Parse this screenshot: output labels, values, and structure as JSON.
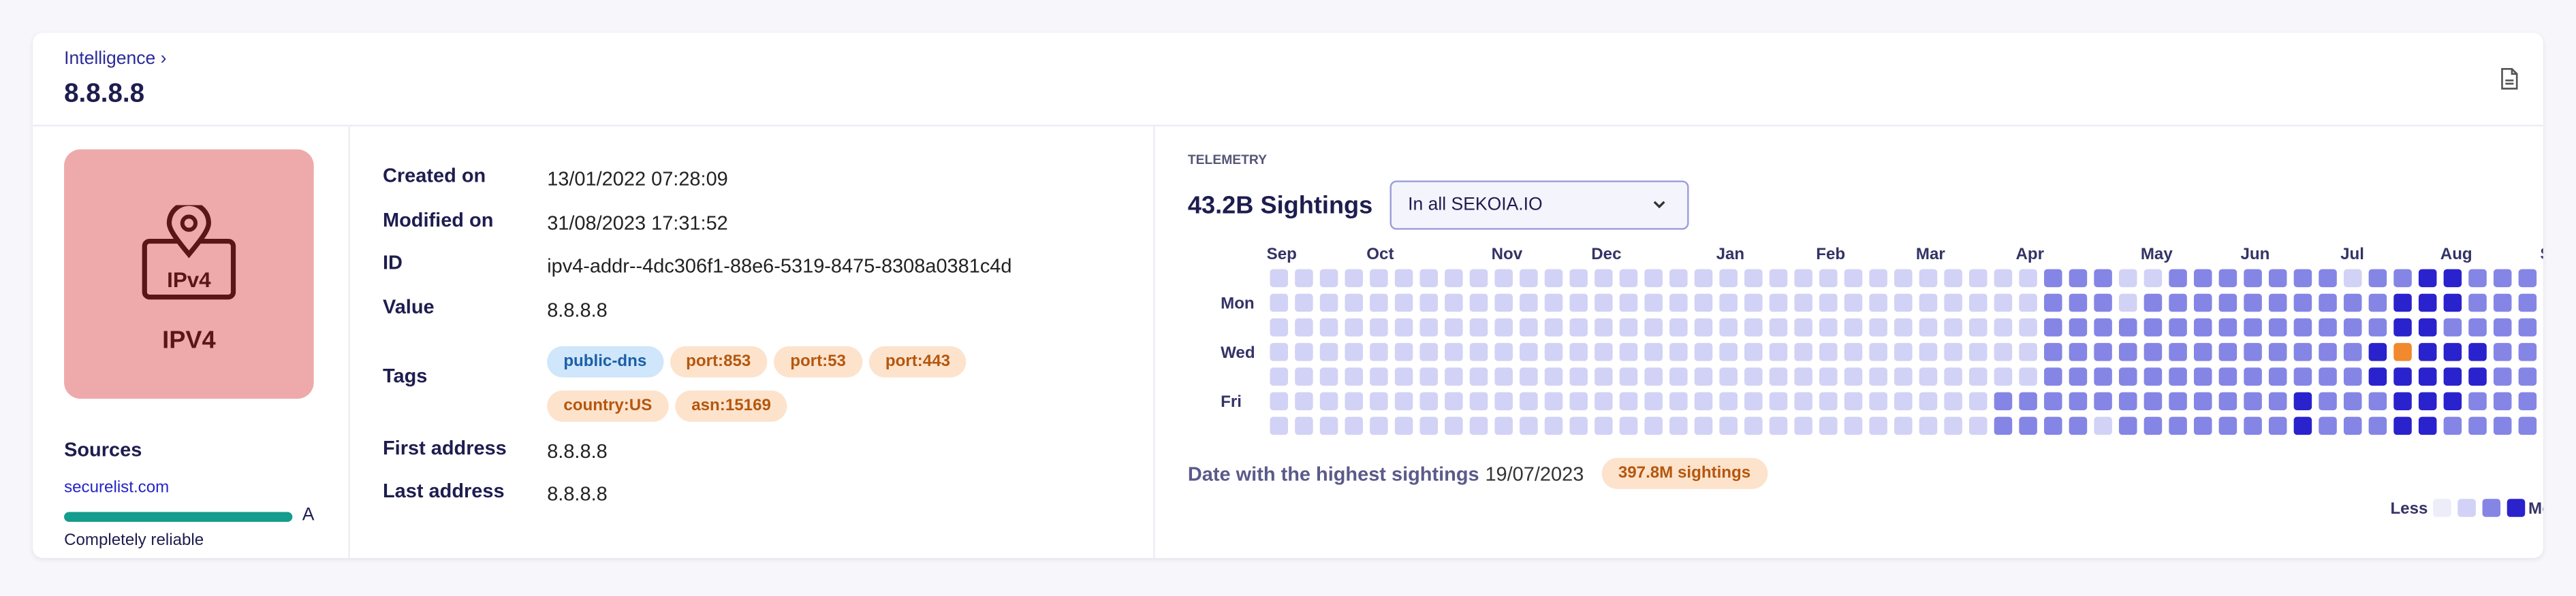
{
  "header": {
    "breadcrumb": "Intelligence",
    "title": "8.8.8.8"
  },
  "badge": {
    "icon_text": "IPv4",
    "label": "IPV4"
  },
  "sources": {
    "title": "Sources",
    "items": [
      {
        "name": "securelist.com",
        "grade": "A",
        "reliability": "Completely reliable"
      }
    ]
  },
  "details": {
    "rows": [
      [
        "Created on",
        "13/01/2022 07:28:09"
      ],
      [
        "Modified on",
        "31/08/2023 17:31:52"
      ],
      [
        "ID",
        "ipv4-addr--4dc306f1-88e6-5319-8475-8308a0381c4d"
      ],
      [
        "Value",
        "8.8.8.8"
      ]
    ],
    "tags_label": "Tags",
    "tags": [
      {
        "name": "public-dns",
        "color": "blue"
      },
      {
        "name": "port:853",
        "color": "orange"
      },
      {
        "name": "port:53",
        "color": "orange"
      },
      {
        "name": "port:443",
        "color": "orange"
      },
      {
        "name": "country:US",
        "color": "orange"
      },
      {
        "name": "asn:15169",
        "color": "orange"
      }
    ],
    "rows_after": [
      [
        "First address",
        "8.8.8.8"
      ],
      [
        "Last address",
        "8.8.8.8"
      ]
    ]
  },
  "telemetry": {
    "label": "TELEMETRY",
    "sightings": "43.2B Sightings",
    "scope": "In all SEKOIA.IO",
    "months": [
      {
        "name": "Sep",
        "week": 0
      },
      {
        "name": "Oct",
        "week": 4
      },
      {
        "name": "Nov",
        "week": 9
      },
      {
        "name": "Dec",
        "week": 13
      },
      {
        "name": "Jan",
        "week": 18
      },
      {
        "name": "Feb",
        "week": 22
      },
      {
        "name": "Mar",
        "week": 26
      },
      {
        "name": "Apr",
        "week": 30
      },
      {
        "name": "May",
        "week": 35
      },
      {
        "name": "Jun",
        "week": 39
      },
      {
        "name": "Jul",
        "week": 43
      },
      {
        "name": "Aug",
        "week": 47
      },
      {
        "name": "Sep",
        "week": 51
      }
    ],
    "days": [
      {
        "name": "Mon",
        "day": 1
      },
      {
        "name": "Wed",
        "day": 3
      },
      {
        "name": "Fri",
        "day": 5
      }
    ],
    "weeks": [
      [
        1,
        1,
        1,
        1,
        1,
        1,
        1
      ],
      [
        1,
        1,
        1,
        1,
        1,
        1,
        1
      ],
      [
        1,
        1,
        1,
        1,
        1,
        1,
        1
      ],
      [
        1,
        1,
        1,
        1,
        1,
        1,
        1
      ],
      [
        1,
        1,
        1,
        1,
        1,
        1,
        1
      ],
      [
        1,
        1,
        1,
        1,
        1,
        1,
        1
      ],
      [
        1,
        1,
        1,
        1,
        1,
        1,
        1
      ],
      [
        1,
        1,
        1,
        1,
        1,
        1,
        1
      ],
      [
        1,
        1,
        1,
        1,
        1,
        1,
        1
      ],
      [
        1,
        1,
        1,
        1,
        1,
        1,
        1
      ],
      [
        1,
        1,
        1,
        1,
        1,
        1,
        1
      ],
      [
        1,
        1,
        1,
        1,
        1,
        1,
        1
      ],
      [
        1,
        1,
        1,
        1,
        1,
        1,
        1
      ],
      [
        1,
        1,
        1,
        1,
        1,
        1,
        1
      ],
      [
        1,
        1,
        1,
        1,
        1,
        1,
        1
      ],
      [
        1,
        1,
        1,
        1,
        1,
        1,
        1
      ],
      [
        1,
        1,
        1,
        1,
        1,
        1,
        1
      ],
      [
        1,
        1,
        1,
        1,
        1,
        1,
        1
      ],
      [
        1,
        1,
        1,
        1,
        1,
        1,
        1
      ],
      [
        1,
        1,
        1,
        1,
        1,
        1,
        1
      ],
      [
        1,
        1,
        1,
        1,
        1,
        1,
        1
      ],
      [
        1,
        1,
        1,
        1,
        1,
        1,
        1
      ],
      [
        1,
        1,
        1,
        1,
        1,
        1,
        1
      ],
      [
        1,
        1,
        1,
        1,
        1,
        1,
        1
      ],
      [
        1,
        1,
        1,
        1,
        1,
        1,
        1
      ],
      [
        1,
        1,
        1,
        1,
        1,
        1,
        1
      ],
      [
        1,
        1,
        1,
        1,
        1,
        1,
        1
      ],
      [
        1,
        1,
        1,
        1,
        1,
        1,
        1
      ],
      [
        1,
        1,
        1,
        1,
        1,
        1,
        1
      ],
      [
        1,
        1,
        1,
        1,
        1,
        2,
        2
      ],
      [
        1,
        1,
        1,
        1,
        1,
        2,
        2
      ],
      [
        2,
        2,
        2,
        2,
        2,
        2,
        2
      ],
      [
        2,
        2,
        2,
        2,
        2,
        2,
        2
      ],
      [
        2,
        2,
        2,
        2,
        2,
        2,
        1
      ],
      [
        1,
        1,
        2,
        2,
        2,
        2,
        2
      ],
      [
        1,
        2,
        2,
        2,
        2,
        2,
        2
      ],
      [
        2,
        2,
        2,
        2,
        2,
        2,
        2
      ],
      [
        2,
        2,
        2,
        2,
        2,
        2,
        2
      ],
      [
        2,
        2,
        2,
        2,
        2,
        2,
        2
      ],
      [
        2,
        2,
        2,
        2,
        2,
        2,
        2
      ],
      [
        2,
        2,
        2,
        2,
        2,
        2,
        2
      ],
      [
        2,
        2,
        2,
        2,
        2,
        3,
        3
      ],
      [
        2,
        2,
        2,
        2,
        2,
        2,
        2
      ],
      [
        1,
        2,
        2,
        2,
        2,
        2,
        2
      ],
      [
        2,
        2,
        2,
        3,
        3,
        2,
        2
      ],
      [
        2,
        3,
        3,
        2,
        3,
        3,
        3
      ],
      [
        3,
        3,
        3,
        3,
        3,
        3,
        3
      ],
      [
        3,
        3,
        2,
        3,
        3,
        3,
        2
      ],
      [
        2,
        2,
        2,
        3,
        3,
        2,
        2
      ],
      [
        2,
        2,
        2,
        2,
        2,
        2,
        2
      ],
      [
        2,
        2,
        2,
        2,
        2,
        2,
        2
      ],
      [
        2,
        3,
        2,
        2,
        2,
        2,
        null
      ]
    ],
    "highlight": {
      "week": 45,
      "day": 3
    },
    "highest_label": "Date with the highest sightings",
    "highest_date": "19/07/2023",
    "highest_value": "397.8M sightings",
    "legend_less": "Less",
    "legend_more": "More",
    "legend_levels": [
      0,
      1,
      2,
      3
    ]
  }
}
